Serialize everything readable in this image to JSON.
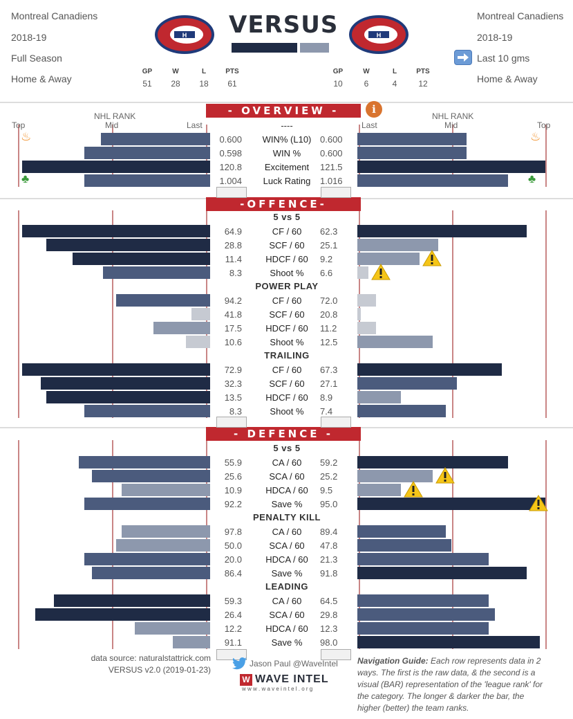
{
  "left_team": {
    "name": "Montreal Canadiens",
    "season": "2018-19",
    "period": "Full Season",
    "venue": "Home & Away",
    "stats": {
      "GP": "51",
      "W": "28",
      "L": "18",
      "PTS": "61"
    }
  },
  "right_team": {
    "name": "Montreal Canadiens",
    "season": "2018-19",
    "period": "Last 10 gms",
    "venue": "Home & Away",
    "stats": {
      "GP": "10",
      "W": "6",
      "L": "4",
      "PTS": "12"
    }
  },
  "stat_headers": [
    "GP",
    "W",
    "L",
    "PTS"
  ],
  "title": "VERSUS",
  "rank_labels": {
    "nhl_rank": "NHL RANK",
    "top": "Top",
    "mid": "Mid",
    "last": "Last"
  },
  "banners": {
    "overview": "- OVERVIEW -",
    "offence": "-OFFENCE-",
    "defence": "- DEFENCE -"
  },
  "overview_header": "----",
  "subheaders": {
    "off_5v5": "5 vs 5",
    "off_pp": "POWER PLAY",
    "off_trailing": "TRAILING",
    "def_5v5": "5 vs 5",
    "def_pk": "PENALTY KILL",
    "def_leading": "LEADING"
  },
  "footer": {
    "source": "data source: naturalstattrick.com",
    "version": "VERSUS v2.0 (2019-01-23)",
    "author": "Jason Paul @WaveIntel",
    "brand": "WAVE INTEL",
    "site": "w w w . w a v e i n t e l . o r g",
    "nav_title": "Navigation Guide:",
    "nav_text": " Each row represents data in 2 ways. The first is the raw data, & the second is a visual (BAR) representation of the 'league rank' for the category. The longer & darker the bar, the higher (better) the team ranks."
  },
  "colors": {
    "red": "#c0282f",
    "navy": "#1f2b45",
    "mid": "#4b5b7d",
    "light": "#8d98ad",
    "pale": "#c6cad2",
    "rankline": "#c98585"
  },
  "chart_data": {
    "type": "bar",
    "note": "Diverging horizontal bars; bar strength = league rank fraction (1 = top, 0 = last). Left = Full Season, Right = Last 10 gms.",
    "rows": [
      {
        "section": "overview",
        "label": "WIN% (L10)",
        "left": "0.600",
        "right": "0.600",
        "left_rank": 0.58,
        "right_rank": 0.58,
        "left_shade": "mid",
        "right_shade": "mid",
        "flame": true
      },
      {
        "section": "overview",
        "label": "WIN %",
        "left": "0.598",
        "right": "0.600",
        "left_rank": 0.67,
        "right_rank": 0.58,
        "left_shade": "mid",
        "right_shade": "mid"
      },
      {
        "section": "overview",
        "label": "Excitement",
        "left": "120.8",
        "right": "121.5",
        "left_rank": 1.0,
        "right_rank": 1.0,
        "left_shade": "navy",
        "right_shade": "navy"
      },
      {
        "section": "overview",
        "label": "Luck Rating",
        "left": "1.004",
        "right": "1.016",
        "left_rank": 0.67,
        "right_rank": 0.8,
        "left_shade": "mid",
        "right_shade": "mid",
        "clover": true
      },
      {
        "section": "offence",
        "sub": "off_5v5"
      },
      {
        "label": "CF / 60",
        "left": "64.9",
        "right": "62.3",
        "left_rank": 1.0,
        "right_rank": 0.9,
        "left_shade": "navy",
        "right_shade": "navy"
      },
      {
        "label": "SCF / 60",
        "left": "28.8",
        "right": "25.1",
        "left_rank": 0.87,
        "right_rank": 0.43,
        "left_shade": "navy",
        "right_shade": "light"
      },
      {
        "label": "HDCF / 60",
        "left": "11.4",
        "right": "9.2",
        "left_rank": 0.73,
        "right_rank": 0.33,
        "left_shade": "navy",
        "right_shade": "light",
        "right_warn": true
      },
      {
        "label": "Shoot %",
        "left": "8.3",
        "right": "6.6",
        "left_rank": 0.57,
        "right_rank": 0.06,
        "left_shade": "mid",
        "right_shade": "pale",
        "right_warn": true
      },
      {
        "sub": "off_pp"
      },
      {
        "label": "CF / 60",
        "left": "94.2",
        "right": "72.0",
        "left_rank": 0.5,
        "right_rank": 0.1,
        "left_shade": "mid",
        "right_shade": "pale"
      },
      {
        "label": "SCF / 60",
        "left": "41.8",
        "right": "20.8",
        "left_rank": 0.1,
        "right_rank": 0.02,
        "left_shade": "pale",
        "right_shade": "pale"
      },
      {
        "label": "HDCF / 60",
        "left": "17.5",
        "right": "11.2",
        "left_rank": 0.3,
        "right_rank": 0.1,
        "left_shade": "light",
        "right_shade": "pale"
      },
      {
        "label": "Shoot  %",
        "left": "10.6",
        "right": "12.5",
        "left_rank": 0.13,
        "right_rank": 0.4,
        "left_shade": "pale",
        "right_shade": "light"
      },
      {
        "sub": "off_trailing"
      },
      {
        "label": "CF / 60",
        "left": "72.9",
        "right": "67.3",
        "left_rank": 1.0,
        "right_rank": 0.77,
        "left_shade": "navy",
        "right_shade": "navy"
      },
      {
        "label": "SCF / 60",
        "left": "32.3",
        "right": "27.1",
        "left_rank": 0.9,
        "right_rank": 0.53,
        "left_shade": "navy",
        "right_shade": "mid"
      },
      {
        "label": "HDCF / 60",
        "left": "13.5",
        "right": "8.9",
        "left_rank": 0.87,
        "right_rank": 0.23,
        "left_shade": "navy",
        "right_shade": "light"
      },
      {
        "label": "Shoot %",
        "left": "8.3",
        "right": "7.4",
        "left_rank": 0.67,
        "right_rank": 0.47,
        "left_shade": "mid",
        "right_shade": "mid"
      },
      {
        "section": "defence",
        "sub": "def_5v5"
      },
      {
        "label": "CA / 60",
        "left": "55.9",
        "right": "59.2",
        "left_rank": 0.7,
        "right_rank": 0.8,
        "left_shade": "mid",
        "right_shade": "navy"
      },
      {
        "label": "SCA / 60",
        "left": "25.6",
        "right": "25.2",
        "left_rank": 0.63,
        "right_rank": 0.4,
        "left_shade": "mid",
        "right_shade": "light",
        "right_warn": true
      },
      {
        "label": "HDCA / 60",
        "left": "10.9",
        "right": "9.5",
        "left_rank": 0.47,
        "right_rank": 0.23,
        "left_shade": "light",
        "right_shade": "light",
        "right_warn": true
      },
      {
        "label": "Save %",
        "left": "92.2",
        "right": "95.0",
        "left_rank": 0.67,
        "right_rank": 1.0,
        "left_shade": "mid",
        "right_shade": "navy",
        "right_warn": true
      },
      {
        "sub": "def_pk"
      },
      {
        "label": "CA / 60",
        "left": "97.8",
        "right": "89.4",
        "left_rank": 0.47,
        "right_rank": 0.47,
        "left_shade": "light",
        "right_shade": "mid"
      },
      {
        "label": "SCA / 60",
        "left": "50.0",
        "right": "47.8",
        "left_rank": 0.5,
        "right_rank": 0.5,
        "left_shade": "light",
        "right_shade": "mid"
      },
      {
        "label": "HDCA / 60",
        "left": "20.0",
        "right": "21.3",
        "left_rank": 0.67,
        "right_rank": 0.7,
        "left_shade": "mid",
        "right_shade": "mid"
      },
      {
        "label": "Save %",
        "left": "86.4",
        "right": "91.8",
        "left_rank": 0.63,
        "right_rank": 0.9,
        "left_shade": "mid",
        "right_shade": "navy"
      },
      {
        "sub": "def_leading"
      },
      {
        "label": "CA / 60",
        "left": "59.3",
        "right": "64.5",
        "left_rank": 0.83,
        "right_rank": 0.7,
        "left_shade": "navy",
        "right_shade": "mid"
      },
      {
        "label": "SCA / 60",
        "left": "26.4",
        "right": "29.8",
        "left_rank": 0.93,
        "right_rank": 0.73,
        "left_shade": "navy",
        "right_shade": "mid"
      },
      {
        "label": "HDCA / 60",
        "left": "12.2",
        "right": "12.3",
        "left_rank": 0.4,
        "right_rank": 0.7,
        "left_shade": "light",
        "right_shade": "mid"
      },
      {
        "label": "Save %",
        "left": "91.1",
        "right": "98.0",
        "left_rank": 0.2,
        "right_rank": 0.97,
        "left_shade": "light",
        "right_shade": "navy"
      }
    ]
  }
}
